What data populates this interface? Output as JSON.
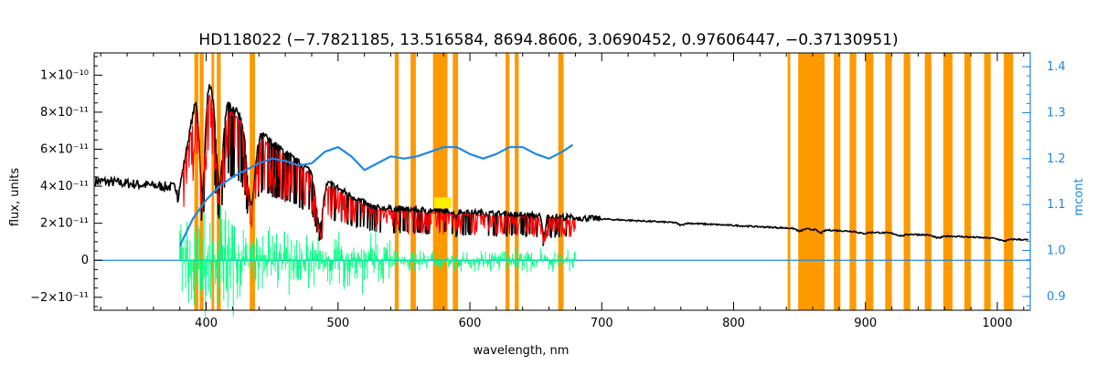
{
  "chart_data": {
    "type": "line",
    "title": "HD118022   (−7.7821185, 13.516584, 8694.8606, 3.0690452, 0.97606447, −0.37130951)",
    "xlabel": "wavelength, nm",
    "ylabel": "flux, units",
    "ylabel_right": "mcont",
    "xlim": [
      315,
      1025
    ],
    "ylim": [
      -2.7e-11,
      1.12e-10
    ],
    "ylim_right": [
      0.87,
      1.43
    ],
    "x_ticks": [
      400,
      500,
      600,
      700,
      800,
      900,
      1000
    ],
    "x_tick_labels": [
      "400",
      "500",
      "600",
      "700",
      "800",
      "900",
      "1000"
    ],
    "y_ticks": [
      -2e-11,
      0,
      2e-11,
      4e-11,
      6e-11,
      8e-11,
      1e-10
    ],
    "y_tick_labels": [
      "−2×10⁻¹¹",
      "0",
      "2×10⁻¹¹",
      "4×10⁻¹¹",
      "6×10⁻¹¹",
      "8×10⁻¹¹",
      "1×10⁻¹⁰"
    ],
    "y_right_ticks": [
      0.9,
      1.0,
      1.1,
      1.2,
      1.3,
      1.4
    ],
    "y_right_tick_labels": [
      "0.9",
      "1.0",
      "1.1",
      "1.2",
      "1.3",
      "1.4"
    ],
    "masked_bands_nm": [
      [
        391,
        394
      ],
      [
        395,
        398
      ],
      [
        404,
        406
      ],
      [
        408,
        411
      ],
      [
        433,
        437
      ],
      [
        543,
        546
      ],
      [
        555,
        559
      ],
      [
        572,
        583
      ],
      [
        587,
        591
      ],
      [
        627,
        630
      ],
      [
        634,
        637
      ],
      [
        667,
        671
      ],
      [
        841,
        843
      ],
      [
        849,
        869
      ],
      [
        876,
        881
      ],
      [
        888,
        893
      ],
      [
        900,
        906
      ],
      [
        915,
        920
      ],
      [
        929,
        934
      ],
      [
        945,
        950
      ],
      [
        959,
        966
      ],
      [
        975,
        980
      ],
      [
        990,
        995
      ],
      [
        1005,
        1012
      ]
    ],
    "continuum_mcont": {
      "x": [
        380,
        390,
        400,
        410,
        420,
        430,
        440,
        450,
        460,
        470,
        480,
        490,
        500,
        510,
        520,
        530,
        540,
        550,
        560,
        570,
        580,
        590,
        600,
        610,
        620,
        630,
        640,
        650,
        660,
        670,
        678
      ],
      "y": [
        1.01,
        1.07,
        1.11,
        1.14,
        1.16,
        1.175,
        1.19,
        1.2,
        1.195,
        1.185,
        1.19,
        1.215,
        1.225,
        1.205,
        1.175,
        1.19,
        1.205,
        1.2,
        1.205,
        1.215,
        1.225,
        1.225,
        1.21,
        1.2,
        1.21,
        1.225,
        1.225,
        1.21,
        1.2,
        1.215,
        1.23
      ]
    },
    "series": [
      {
        "name": "observed",
        "color": "#000000"
      },
      {
        "name": "model",
        "color": "#ff0000"
      },
      {
        "name": "residuals",
        "color": "#00ff80"
      },
      {
        "name": "mcont",
        "color": "#1e88e5"
      },
      {
        "name": "masked",
        "color": "#ff9900"
      }
    ]
  }
}
